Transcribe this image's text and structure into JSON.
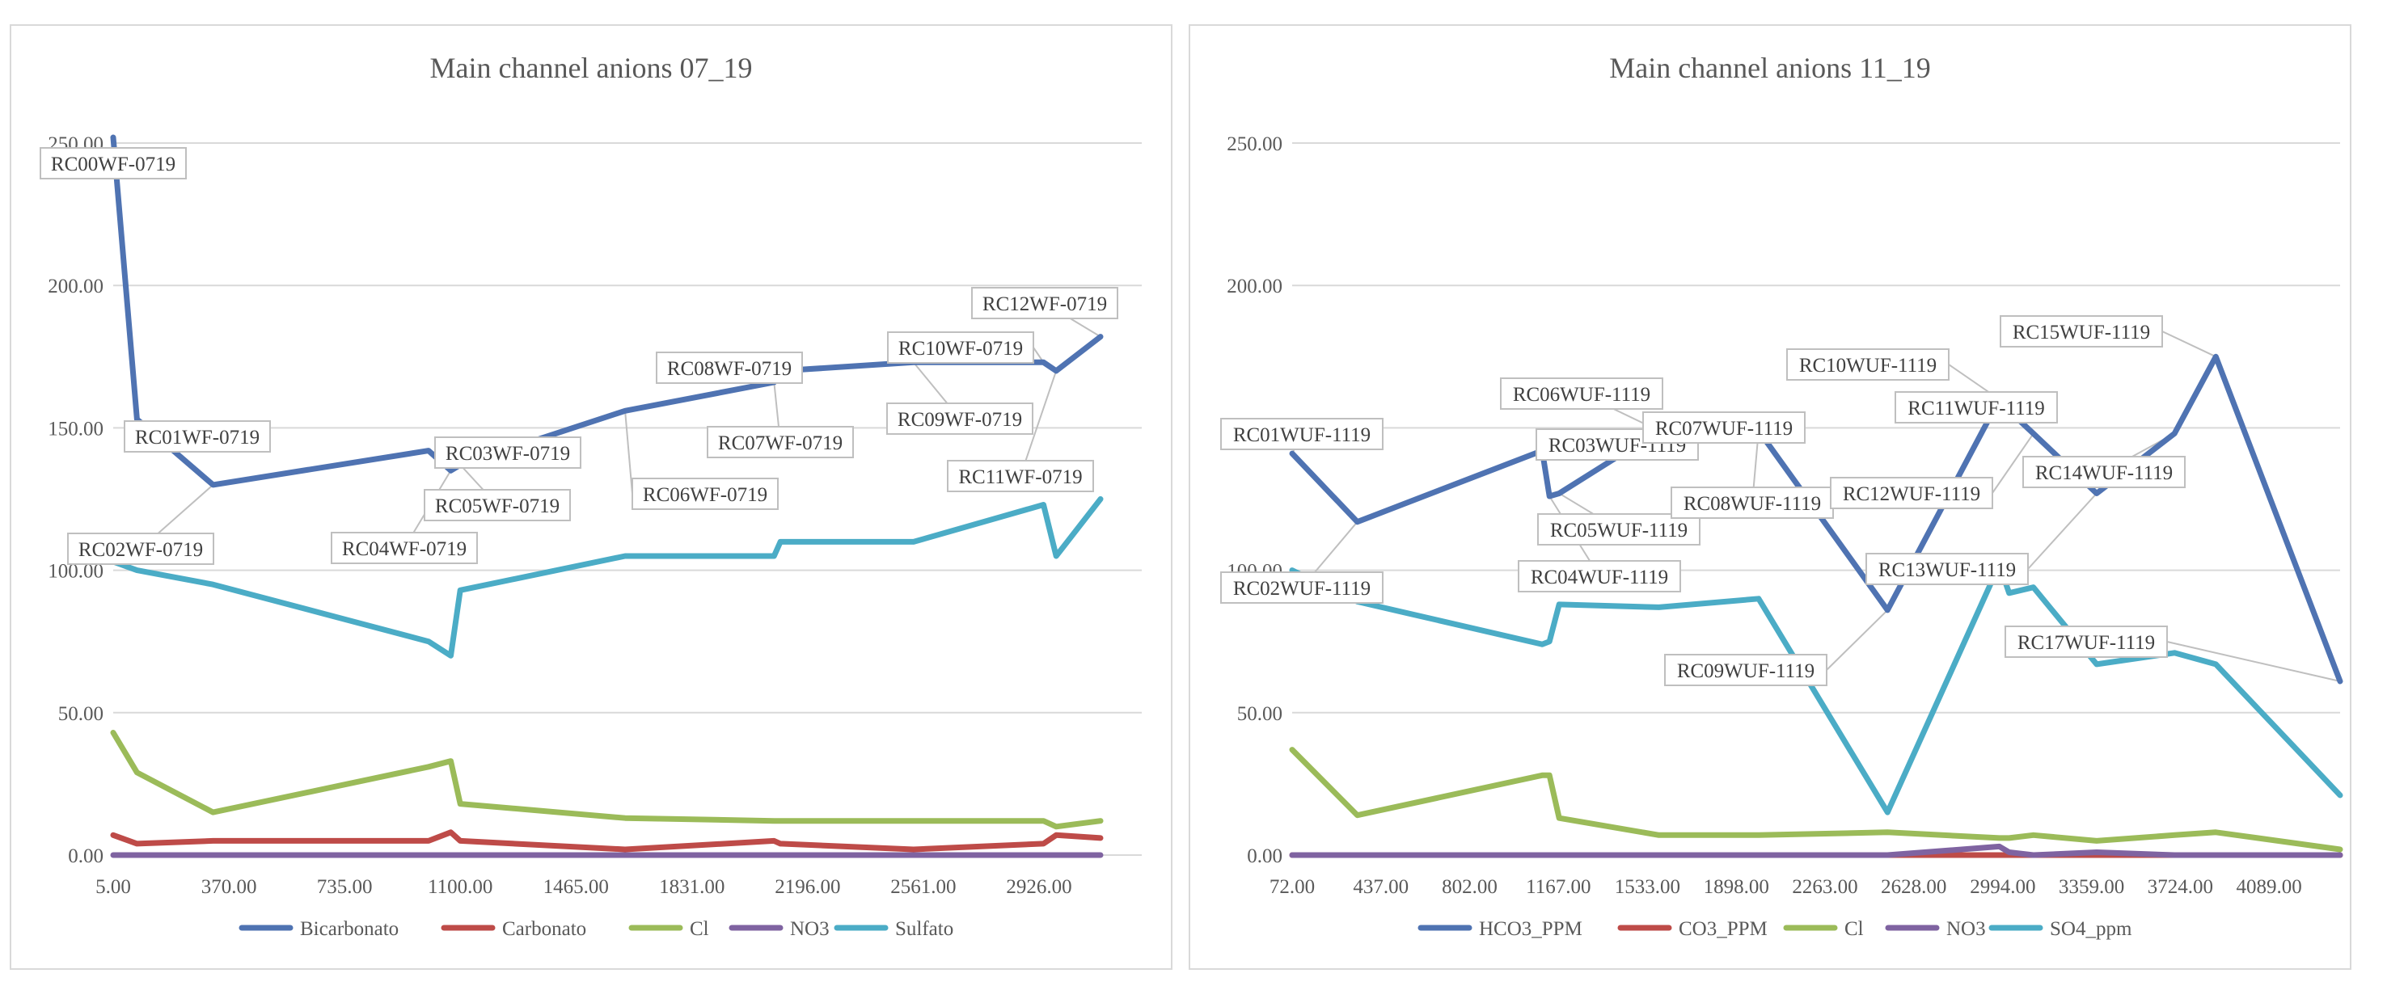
{
  "chart_data": [
    {
      "type": "line",
      "title": "Main channel anions 07_19",
      "xlabel": "",
      "ylabel": "",
      "ylim": [
        0,
        250
      ],
      "xlim": [
        5,
        3250
      ],
      "y_ticks": [
        "0.00",
        "50.00",
        "100.00",
        "150.00",
        "200.00",
        "250.00"
      ],
      "y_tick_values": [
        0,
        50,
        100,
        150,
        200,
        250
      ],
      "x_ticks": [
        "5.00",
        "370.00",
        "735.00",
        "1100.00",
        "1465.00",
        "1831.00",
        "2196.00",
        "2561.00",
        "2926.00"
      ],
      "x_tick_values": [
        5,
        370,
        735,
        1100,
        1465,
        1831,
        2196,
        2561,
        2926
      ],
      "grid": "horizontal",
      "legend": "bottom",
      "series": [
        {
          "name": "Bicarbonato",
          "color": "#4F73B2",
          "x": [
            5,
            80,
            320,
            1000,
            1070,
            1100,
            1620,
            2090,
            2110,
            2530,
            2940,
            2980,
            3120
          ],
          "y": [
            252,
            153,
            130,
            142,
            135,
            137,
            156,
            166,
            170,
            173,
            173,
            170,
            182
          ]
        },
        {
          "name": "Carbonato",
          "color": "#BE4B48",
          "x": [
            5,
            80,
            320,
            1000,
            1070,
            1100,
            1620,
            2090,
            2110,
            2530,
            2940,
            2980,
            3120
          ],
          "y": [
            7,
            4,
            5,
            5,
            8,
            5,
            2,
            5,
            4,
            2,
            4,
            7,
            6
          ]
        },
        {
          "name": "Cl",
          "color": "#9BBB59",
          "x": [
            5,
            80,
            320,
            1000,
            1070,
            1100,
            1620,
            2090,
            2110,
            2530,
            2940,
            2980,
            3120
          ],
          "y": [
            43,
            29,
            15,
            31,
            33,
            18,
            13,
            12,
            12,
            12,
            12,
            10,
            12
          ]
        },
        {
          "name": "NO3",
          "color": "#7F63A1",
          "x": [
            5,
            80,
            320,
            1000,
            1070,
            1100,
            1620,
            2090,
            2110,
            2530,
            2940,
            2980,
            3120
          ],
          "y": [
            0,
            0,
            0,
            0,
            0,
            0,
            0,
            0,
            0,
            0,
            0,
            0,
            0
          ]
        },
        {
          "name": "Sulfato",
          "color": "#4BACC6",
          "x": [
            5,
            80,
            320,
            1000,
            1070,
            1100,
            1620,
            2090,
            2110,
            2530,
            2940,
            2980,
            3120
          ],
          "y": [
            103,
            100,
            95,
            75,
            70,
            93,
            105,
            105,
            110,
            110,
            123,
            105,
            125
          ]
        }
      ],
      "annotations": [
        {
          "text": "RC00WF-0719",
          "x": 5,
          "y": 252
        },
        {
          "text": "RC01WF-0719",
          "x": 80,
          "y": 153
        },
        {
          "text": "RC02WF-0719",
          "x": 320,
          "y": 130
        },
        {
          "text": "RC03WF-0719",
          "x": 1000,
          "y": 142
        },
        {
          "text": "RC04WF-0719",
          "x": 1070,
          "y": 135
        },
        {
          "text": "RC05WF-0719",
          "x": 1100,
          "y": 137
        },
        {
          "text": "RC06WF-0719",
          "x": 1620,
          "y": 156
        },
        {
          "text": "RC07WF-0719",
          "x": 2090,
          "y": 166
        },
        {
          "text": "RC08WF-0719",
          "x": 2110,
          "y": 170
        },
        {
          "text": "RC09WF-0719",
          "x": 2530,
          "y": 173
        },
        {
          "text": "RC10WF-0719",
          "x": 2940,
          "y": 173
        },
        {
          "text": "RC11WF-0719",
          "x": 2980,
          "y": 170
        },
        {
          "text": "RC12WF-0719",
          "x": 3120,
          "y": 182
        }
      ]
    },
    {
      "type": "line",
      "title": "Main channel anions 11_19",
      "xlabel": "",
      "ylabel": "",
      "ylim": [
        0,
        250
      ],
      "xlim": [
        72,
        4381
      ],
      "y_ticks": [
        "0.00",
        "50.00",
        "100.00",
        "150.00",
        "200.00",
        "250.00"
      ],
      "y_tick_values": [
        0,
        50,
        100,
        150,
        200,
        250
      ],
      "x_ticks": [
        "72.00",
        "437.00",
        "802.00",
        "1167.00",
        "1533.00",
        "1898.00",
        "2263.00",
        "2628.00",
        "2994.00",
        "3359.00",
        "3724.00",
        "4089.00"
      ],
      "x_tick_values": [
        72,
        437,
        802,
        1167,
        1533,
        1898,
        2263,
        2628,
        2994,
        3359,
        3724,
        4089
      ],
      "grid": "horizontal",
      "legend": "bottom",
      "series": [
        {
          "name": "HCO3_PPM",
          "color": "#4F73B2",
          "x": [
            72,
            340,
            1100,
            1130,
            1170,
            1580,
            1990,
            2520,
            2980,
            3020,
            3120,
            3380,
            3700,
            3870,
            4381
          ],
          "y": [
            141,
            117,
            142,
            126,
            127,
            149,
            149,
            86,
            160,
            156,
            148,
            127,
            148,
            175,
            61
          ]
        },
        {
          "name": "CO3_PPM",
          "color": "#BE4B48",
          "x": [
            72,
            340,
            1100,
            1130,
            1170,
            1580,
            1990,
            2520,
            2980,
            3020,
            3120,
            3380,
            3700,
            3870,
            4381
          ],
          "y": [
            0,
            0,
            0,
            0,
            0,
            0,
            0,
            0,
            0,
            0,
            0,
            0,
            0,
            0,
            0
          ]
        },
        {
          "name": "Cl",
          "color": "#9BBB59",
          "x": [
            72,
            340,
            1100,
            1130,
            1170,
            1580,
            1990,
            2520,
            2980,
            3020,
            3120,
            3380,
            3700,
            3870,
            4381
          ],
          "y": [
            37,
            14,
            28,
            28,
            13,
            7,
            7,
            8,
            6,
            6,
            7,
            5,
            7,
            8,
            2
          ]
        },
        {
          "name": "NO3",
          "color": "#7F63A1",
          "x": [
            72,
            340,
            1100,
            1130,
            1170,
            1580,
            1990,
            2520,
            2980,
            3020,
            3120,
            3380,
            3700,
            3870,
            4381
          ],
          "y": [
            0,
            0,
            0,
            0,
            0,
            0,
            0,
            0,
            3,
            1,
            0,
            1,
            0,
            0,
            0
          ]
        },
        {
          "name": "SO4_ppm",
          "color": "#4BACC6",
          "x": [
            72,
            340,
            1100,
            1130,
            1170,
            1580,
            1990,
            2520,
            2980,
            3020,
            3120,
            3380,
            3700,
            3870,
            4381
          ],
          "y": [
            100,
            89,
            74,
            75,
            88,
            87,
            90,
            15,
            102,
            92,
            94,
            67,
            71,
            67,
            21
          ]
        }
      ],
      "annotations": [
        {
          "text": "RC01WUF-1119",
          "x": 72,
          "y": 141
        },
        {
          "text": "RC02WUF-1119",
          "x": 340,
          "y": 117
        },
        {
          "text": "RC03WUF-1119",
          "x": 1100,
          "y": 142
        },
        {
          "text": "RC04WUF-1119",
          "x": 1130,
          "y": 126
        },
        {
          "text": "RC05WUF-1119",
          "x": 1170,
          "y": 127
        },
        {
          "text": "RC06WUF-1119",
          "x": 1580,
          "y": 149
        },
        {
          "text": "RC07WUF-1119",
          "x": 1990,
          "y": 149
        },
        {
          "text": "RC08WUF-1119",
          "x": 1990,
          "y": 149
        },
        {
          "text": "RC09WUF-1119",
          "x": 2520,
          "y": 86
        },
        {
          "text": "RC10WUF-1119",
          "x": 2980,
          "y": 160
        },
        {
          "text": "RC11WUF-1119",
          "x": 3020,
          "y": 156
        },
        {
          "text": "RC12WUF-1119",
          "x": 3120,
          "y": 148
        },
        {
          "text": "RC13WUF-1119",
          "x": 3380,
          "y": 127
        },
        {
          "text": "RC14WUF-1119",
          "x": 3700,
          "y": 148
        },
        {
          "text": "RC15WUF-1119",
          "x": 3870,
          "y": 175
        },
        {
          "text": "RC17WUF-1119",
          "x": 4381,
          "y": 61
        }
      ]
    }
  ]
}
